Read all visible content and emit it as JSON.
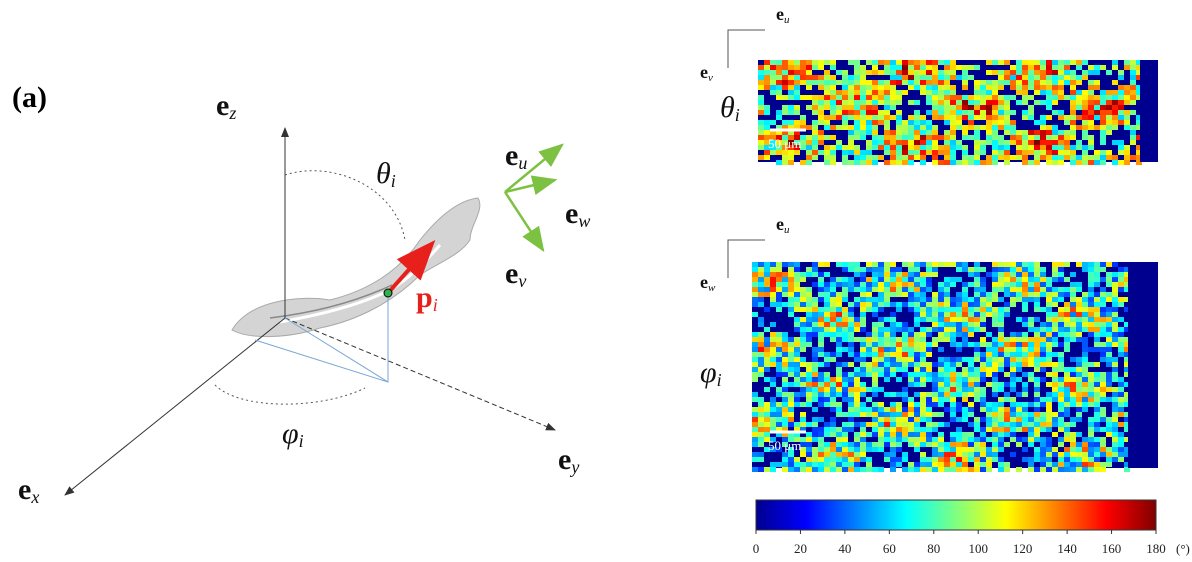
{
  "figure": {
    "panel_label": "(a)",
    "diagram": {
      "e_z": {
        "base": "e",
        "sub": "z"
      },
      "e_x": {
        "base": "e",
        "sub": "x"
      },
      "e_y": {
        "base": "e",
        "sub": "y"
      },
      "theta": {
        "base": "θ",
        "sub": "i"
      },
      "phi": {
        "base": "φ",
        "sub": "i"
      },
      "p": {
        "base": "p",
        "sub": "i"
      },
      "e_u": {
        "base": "e",
        "sub": "u"
      },
      "e_w": {
        "base": "e",
        "sub": "w"
      },
      "e_v": {
        "base": "e",
        "sub": "v"
      }
    },
    "maps": [
      {
        "axis_h": {
          "base": "e",
          "sub": "u"
        },
        "axis_v": {
          "base": "e",
          "sub": "v"
        },
        "angle": {
          "base": "θ",
          "sub": "i"
        },
        "scale_bar": "50 μm"
      },
      {
        "axis_h": {
          "base": "e",
          "sub": "u"
        },
        "axis_v": {
          "base": "e",
          "sub": "w"
        },
        "angle": {
          "base": "φ",
          "sub": "i"
        },
        "scale_bar": "50 μm"
      }
    ],
    "colorbar": {
      "range": [
        0,
        180
      ],
      "ticks": [
        0,
        20,
        40,
        60,
        80,
        100,
        120,
        140,
        160,
        180
      ],
      "unit": "(°)"
    }
  }
}
